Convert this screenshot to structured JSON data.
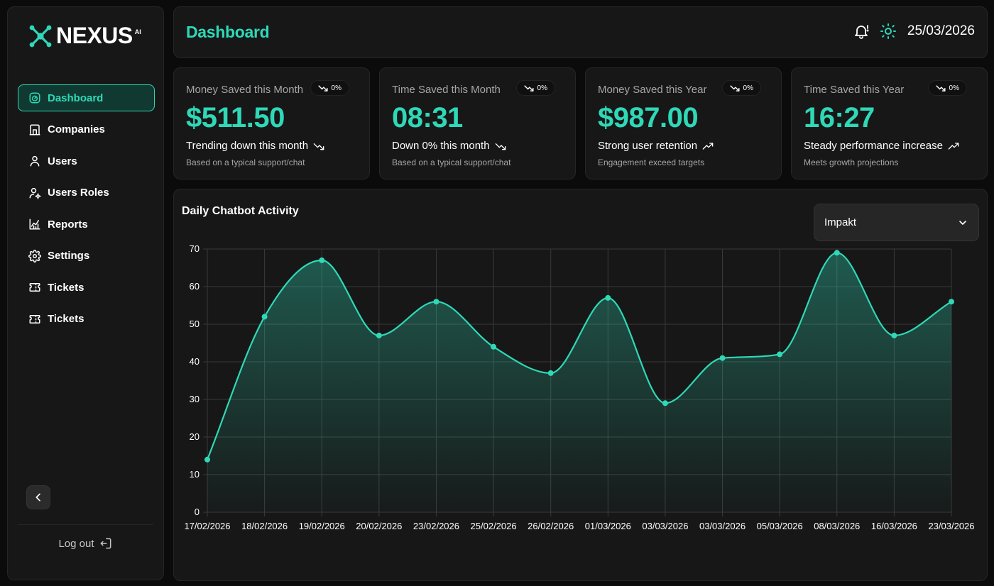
{
  "brand": {
    "name": "NEXUS",
    "sup": "AI",
    "accent": "#2fd8b7"
  },
  "sidebar": {
    "items": [
      {
        "label": "Dashboard",
        "icon": "gauge-icon",
        "active": true
      },
      {
        "label": "Companies",
        "icon": "building-icon"
      },
      {
        "label": "Users",
        "icon": "user-icon"
      },
      {
        "label": "Users Roles",
        "icon": "user-cog-icon"
      },
      {
        "label": "Reports",
        "icon": "chart-icon"
      },
      {
        "label": "Settings",
        "icon": "gear-icon"
      },
      {
        "label": "Tickets",
        "icon": "ticket-icon"
      },
      {
        "label": "Tickets",
        "icon": "ticket-icon"
      }
    ],
    "logout_label": "Log out"
  },
  "header": {
    "title": "Dashboard",
    "date": "25/03/2026"
  },
  "cards": [
    {
      "label": "Money Saved this Month",
      "badge": "0%",
      "badge_dir": "down",
      "value": "$511.50",
      "trend": "Trending down this month",
      "trend_dir": "down",
      "sub": "Based on a typical support/chat"
    },
    {
      "label": "Time Saved this Month",
      "badge": "0%",
      "badge_dir": "down",
      "value": "08:31",
      "trend": "Down 0% this month",
      "trend_dir": "down",
      "sub": "Based on a typical support/chat"
    },
    {
      "label": "Money Saved this Year",
      "badge": "0%",
      "badge_dir": "down",
      "value": "$987.00",
      "trend": "Strong user retention",
      "trend_dir": "up",
      "sub": "Engagement exceed targets"
    },
    {
      "label": "Time Saved this Year",
      "badge": "0%",
      "badge_dir": "down",
      "value": "16:27",
      "trend": "Steady performance increase",
      "trend_dir": "up",
      "sub": "Meets growth projections"
    }
  ],
  "activity": {
    "title": "Daily Chatbot Activity",
    "select_value": "Impakt"
  },
  "chart_data": {
    "type": "area",
    "title": "Daily Chatbot Activity",
    "x": [
      "17/02/2026",
      "18/02/2026",
      "19/02/2026",
      "20/02/2026",
      "23/02/2026",
      "25/02/2026",
      "26/02/2026",
      "01/03/2026",
      "03/03/2026",
      "03/03/2026",
      "05/03/2026",
      "08/03/2026",
      "16/03/2026",
      "23/03/2026"
    ],
    "values": [
      14,
      52,
      67,
      47,
      56,
      44,
      37,
      57,
      29,
      41,
      42,
      69,
      47,
      56
    ],
    "yticks": [
      0,
      10,
      20,
      30,
      40,
      50,
      60,
      70
    ],
    "ylim": [
      0,
      70
    ],
    "grid": true,
    "color": "#2fd8b7"
  }
}
